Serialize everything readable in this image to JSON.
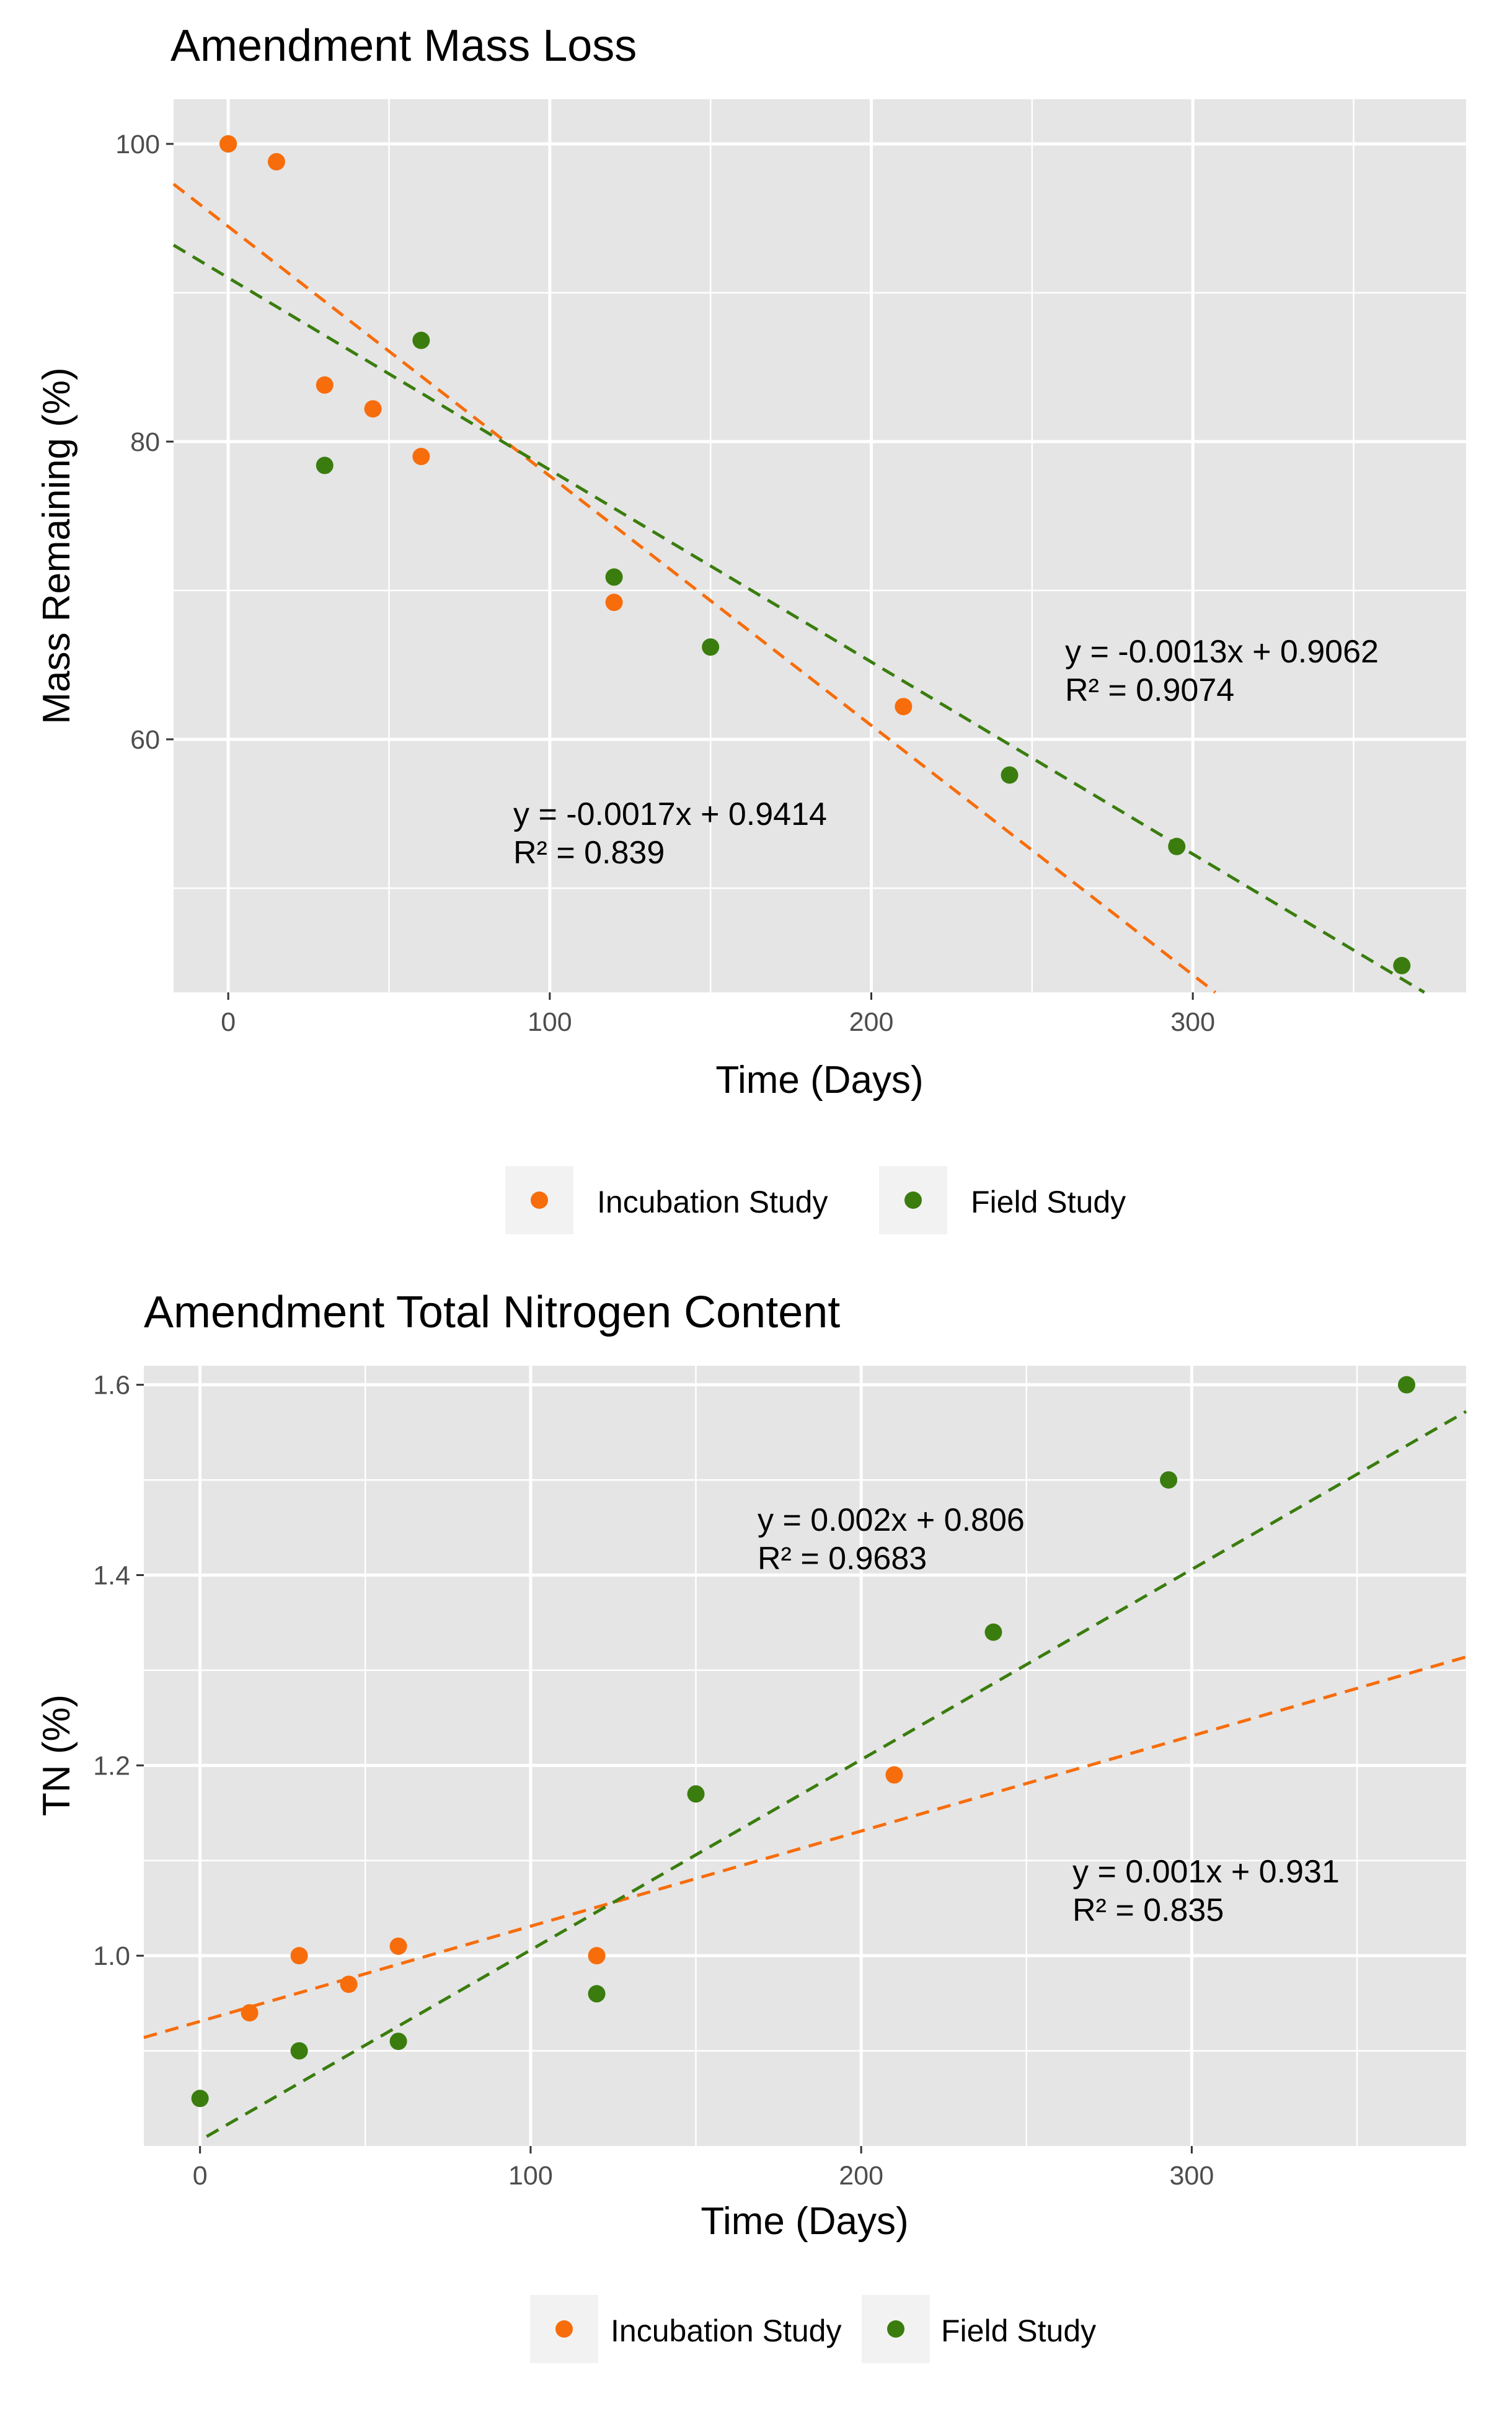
{
  "colors": {
    "incubation": "#f76d0c",
    "field": "#3a7d0e"
  },
  "legend": {
    "incubation_label": "Incubation Study",
    "field_label": "Field Study"
  },
  "chart_data": [
    {
      "type": "scatter",
      "title": "Amendment Mass Loss",
      "xlabel": "Time (Days)",
      "ylabel": "Mass Remaining (%)",
      "xlim": [
        -17,
        385
      ],
      "ylim": [
        43,
        103
      ],
      "x_ticks": [
        0,
        100,
        200,
        300
      ],
      "y_ticks": [
        60,
        80,
        100
      ],
      "legend_position": "bottom",
      "series": [
        {
          "name": "Incubation Study",
          "color_key": "incubation",
          "x": [
            0,
            15,
            30,
            45,
            60,
            120,
            210
          ],
          "y": [
            100,
            98.8,
            83.8,
            82.2,
            79,
            69.2,
            62.2
          ],
          "trend": {
            "type": "linear",
            "x_range": [
              -17,
              307
            ],
            "y_at_start": 97.3,
            "y_at_end": 43
          },
          "annotation": [
            "y = -0.0017x + 0.9414",
            "R² = 0.839"
          ]
        },
        {
          "name": "Field Study",
          "color_key": "field",
          "x": [
            0,
            30,
            60,
            120,
            150,
            243,
            295,
            365
          ],
          "y": [
            100,
            78.4,
            86.8,
            70.9,
            66.2,
            57.6,
            52.8,
            44.8
          ],
          "trend": {
            "type": "linear",
            "x_range": [
              -17,
              372
            ],
            "y_at_start": 93.2,
            "y_at_end": 43
          },
          "annotation": [
            "y = -0.0013x + 0.9062",
            "R² = 0.9074"
          ]
        }
      ]
    },
    {
      "type": "scatter",
      "title": "Amendment Total Nitrogen Content",
      "xlabel": "Time (Days)",
      "ylabel": "TN (%)",
      "xlim": [
        -17,
        383
      ],
      "ylim": [
        0.8,
        1.62
      ],
      "x_ticks": [
        0,
        100,
        200,
        300
      ],
      "y_ticks": [
        1.0,
        1.2,
        1.4,
        1.6
      ],
      "y_tick_labels": [
        "1.0",
        "1.2",
        "1.4",
        "1.6"
      ],
      "legend_position": "bottom",
      "series": [
        {
          "name": "Incubation Study",
          "color_key": "incubation",
          "x": [
            15,
            30,
            45,
            60,
            120,
            210
          ],
          "y": [
            0.94,
            1.0,
            0.97,
            1.01,
            1.0,
            1.19
          ],
          "trend": {
            "type": "linear",
            "x_range": [
              -17,
              383
            ],
            "y_at_start": 0.914,
            "y_at_end": 1.314
          },
          "annotation": [
            "y = 0.001x + 0.931",
            "R² = 0.835"
          ]
        },
        {
          "name": "Field Study",
          "color_key": "field",
          "x": [
            0,
            30,
            60,
            120,
            150,
            240,
            293,
            365
          ],
          "y": [
            0.85,
            0.9,
            0.91,
            0.96,
            1.17,
            1.34,
            1.5,
            1.6
          ],
          "trend": {
            "type": "linear",
            "x_range": [
              2,
              383
            ],
            "y_at_start": 0.81,
            "y_at_end": 1.572
          },
          "annotation": [
            "y = 0.002x + 0.806",
            "R² = 0.9683"
          ]
        }
      ]
    }
  ]
}
